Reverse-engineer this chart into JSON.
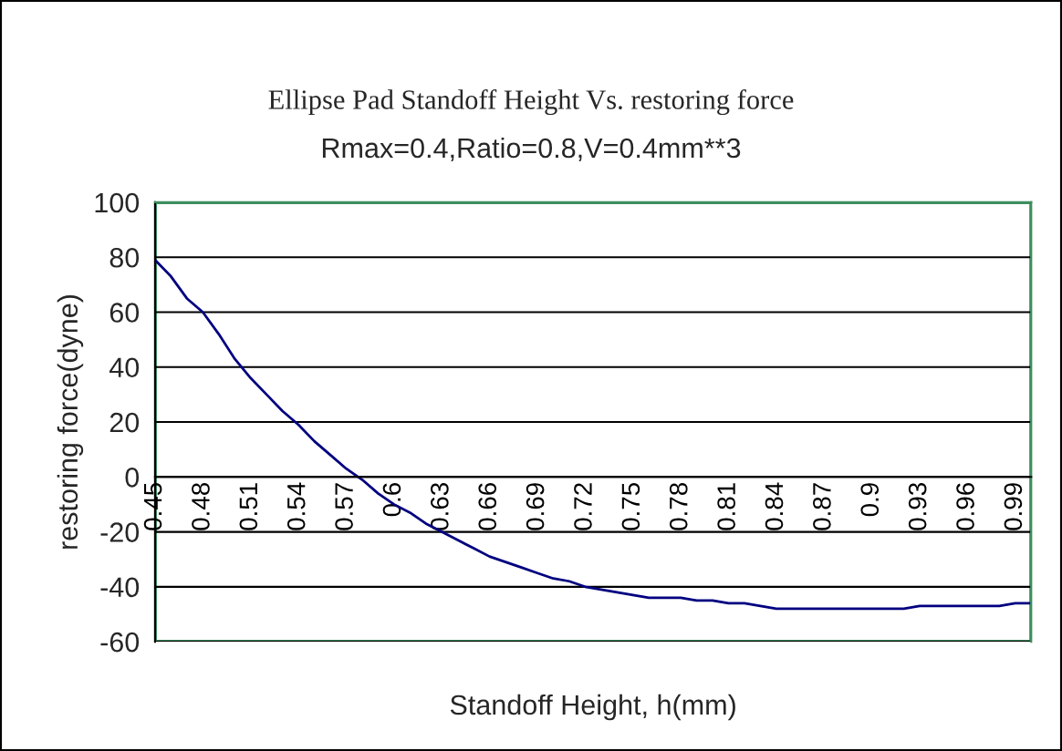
{
  "chart_data": {
    "type": "line",
    "title": "Ellipse Pad Standoff Height Vs. restoring force",
    "subtitle": "Rmax=0.4,Ratio=0.8,V=0.4mm**3",
    "xlabel": "Standoff Height, h(mm)",
    "ylabel": "restoring force(dyne)",
    "categories": [
      "0.45",
      null,
      null,
      "0.48",
      null,
      null,
      "0.51",
      null,
      null,
      "0.54",
      null,
      null,
      "0.57",
      null,
      null,
      "0.6",
      null,
      null,
      "0.63",
      null,
      null,
      "0.66",
      null,
      null,
      "0.69",
      null,
      null,
      "0.72",
      null,
      null,
      "0.75",
      null,
      null,
      "0.78",
      null,
      null,
      "0.81",
      null,
      null,
      "0.84",
      null,
      null,
      "0.87",
      null,
      null,
      "0.9",
      null,
      null,
      "0.93",
      null,
      null,
      "0.96",
      null,
      null,
      "0.99",
      null
    ],
    "series": [
      {
        "color": "#000080",
        "values": [
          79,
          73,
          65,
          60,
          52,
          43,
          36,
          30,
          24,
          19,
          13,
          8,
          3,
          -1,
          -6,
          -10,
          -13,
          -17,
          -20,
          -23,
          -26,
          -29,
          -31,
          -33,
          -35,
          -37,
          -38,
          -40,
          -41,
          -42,
          -43,
          -44,
          -44,
          -44,
          -45,
          -45,
          -46,
          -46,
          -47,
          -48,
          -48,
          -48,
          -48,
          -48,
          -48,
          -48,
          -48,
          -48,
          -47,
          -47,
          -47,
          -47,
          -47,
          -47,
          -46,
          -46
        ]
      }
    ],
    "ylim": [
      -60,
      100
    ],
    "yticks": [
      -60,
      -40,
      -20,
      0,
      20,
      40,
      60,
      80,
      100
    ],
    "grid": "y",
    "marker": "none",
    "line_style": "solid"
  }
}
